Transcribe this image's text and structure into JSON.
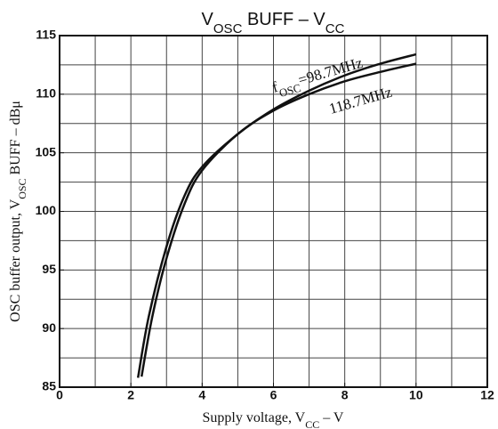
{
  "chart_data": {
    "type": "line",
    "title": [
      {
        "text": "V"
      },
      {
        "text": "OSC",
        "sub": true
      },
      {
        "text": " BUFF  –  V"
      },
      {
        "text": "CC",
        "sub": true
      }
    ],
    "x_label": [
      {
        "text": "Supply voltage, V"
      },
      {
        "text": "CC",
        "sub": true
      },
      {
        "text": "  –  V"
      }
    ],
    "y_label": [
      {
        "text": "OSC buffer output, V"
      },
      {
        "text": "OSC",
        "sub": true
      },
      {
        "text": " BUFF  –  dBμ"
      }
    ],
    "annotations": [
      [
        {
          "text": "f"
        },
        {
          "text": "OSC",
          "sub": true
        },
        {
          "text": "=98.7MHz"
        }
      ],
      [
        {
          "text": "118.7MHz"
        }
      ]
    ],
    "series": [
      {
        "name": "98.7MHz",
        "color": "#111111",
        "x": [
          2.2,
          2.5,
          3,
          3.5,
          4,
          5,
          6,
          7,
          8,
          9,
          10
        ],
        "values": [
          85.8,
          91,
          97,
          101.3,
          103.8,
          106.6,
          108.7,
          110.3,
          111.6,
          112.6,
          113.4
        ]
      },
      {
        "name": "118.7MHz",
        "color": "#111111",
        "x": [
          2.3,
          2.6,
          3,
          3.5,
          4,
          5,
          6,
          7,
          8,
          9,
          10
        ],
        "values": [
          85.9,
          91,
          96,
          100.6,
          103.5,
          106.6,
          108.6,
          110,
          111.1,
          111.9,
          112.6
        ]
      }
    ],
    "xlim": [
      0,
      12
    ],
    "ylim": [
      85,
      115
    ],
    "xticks": [
      0,
      2,
      4,
      6,
      8,
      10,
      12
    ],
    "yticks": [
      85,
      90,
      95,
      100,
      105,
      110,
      115
    ],
    "xgrid": [
      1,
      2,
      3,
      4,
      5,
      6,
      7,
      8,
      9,
      10,
      11
    ],
    "ygrid": [
      87.5,
      90,
      92.5,
      95,
      97.5,
      100,
      102.5,
      105,
      107.5,
      110,
      112.5
    ],
    "grid": true
  }
}
